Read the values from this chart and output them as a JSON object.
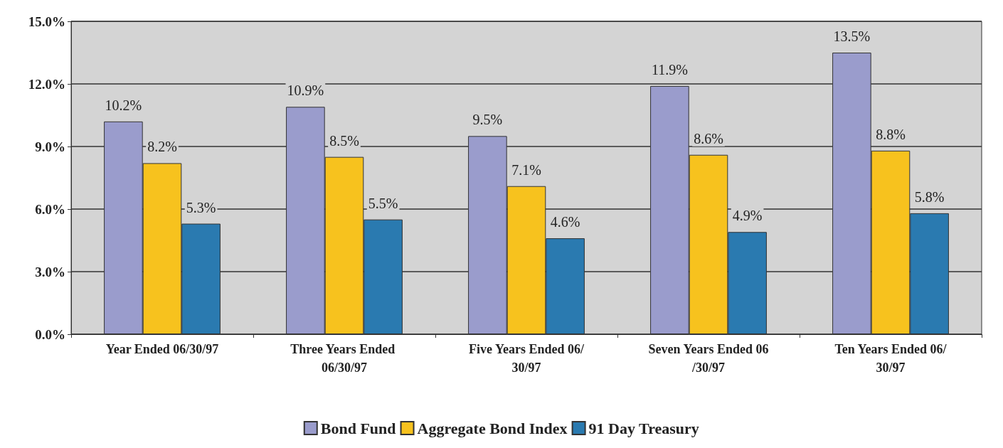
{
  "chart_data": {
    "type": "bar",
    "categories": [
      "Year Ended 06/30/97",
      "Three Years Ended 06/30/97",
      "Five Years Ended 06/30/97",
      "Seven Years Ended 06/30/97",
      "Ten Years Ended 06/30/97"
    ],
    "series": [
      {
        "name": "Bond Fund",
        "color": "#9a9ccc",
        "values": [
          10.2,
          10.9,
          9.5,
          11.9,
          13.5
        ],
        "value_labels": [
          "10.2%",
          "10.9%",
          "9.5%",
          "11.9%",
          "13.5%"
        ]
      },
      {
        "name": "Aggregate Bond Index",
        "color": "#f7c21e",
        "values": [
          8.2,
          8.5,
          7.1,
          8.6,
          8.8
        ],
        "value_labels": [
          "8.2%",
          "8.5%",
          "7.1%",
          "8.6%",
          "8.8%"
        ]
      },
      {
        "name": "91 Day Treasury",
        "color": "#2a7ab0",
        "values": [
          5.3,
          5.5,
          4.6,
          4.9,
          5.8
        ],
        "value_labels": [
          "5.3%",
          "5.5%",
          "4.6%",
          "4.9%",
          "5.8%"
        ]
      }
    ],
    "ylim": [
      0,
      15
    ],
    "yticks": [
      {
        "value": 0,
        "label": "0.0%"
      },
      {
        "value": 3,
        "label": "3.0%"
      },
      {
        "value": 6,
        "label": "6.0%"
      },
      {
        "value": 9,
        "label": "9.0%"
      },
      {
        "value": 12,
        "label": "12.0%"
      },
      {
        "value": 15,
        "label": "15.0%"
      }
    ],
    "grid": "y",
    "legend": "bottom"
  }
}
